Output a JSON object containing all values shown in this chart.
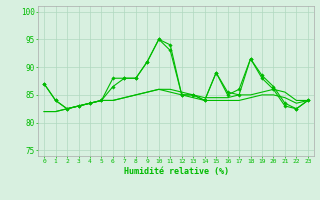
{
  "xlabel": "Humidité relative (%)",
  "ylabel": "",
  "xlim": [
    -0.5,
    23.5
  ],
  "ylim": [
    74,
    101
  ],
  "yticks": [
    75,
    80,
    85,
    90,
    95,
    100
  ],
  "xticks": [
    0,
    1,
    2,
    3,
    4,
    5,
    6,
    7,
    8,
    9,
    10,
    11,
    12,
    13,
    14,
    15,
    16,
    17,
    18,
    19,
    20,
    21,
    22,
    23
  ],
  "background_color": "#d8f0e0",
  "grid_color": "#b0d8c0",
  "line_color": "#00bb00",
  "series": [
    [
      87,
      84,
      82.5,
      83,
      83.5,
      84,
      88,
      88,
      88,
      91,
      95,
      94,
      85,
      85,
      84,
      89,
      85,
      86,
      91.5,
      88.5,
      86.5,
      83.5,
      82.5,
      84
    ],
    [
      87,
      84,
      82.5,
      83,
      83.5,
      84,
      86.5,
      88,
      88,
      91,
      95,
      93,
      85,
      85,
      84,
      89,
      85.5,
      85,
      91.5,
      88,
      86,
      83,
      82.5,
      84
    ],
    [
      82,
      82,
      82.5,
      83,
      83.5,
      84,
      84,
      84.5,
      85,
      85.5,
      86,
      85.5,
      85,
      84.5,
      84,
      84,
      84,
      84,
      84.5,
      85,
      85,
      84.5,
      83.5,
      84
    ],
    [
      82,
      82,
      82.5,
      83,
      83.5,
      84,
      84,
      84.5,
      85,
      85.5,
      86,
      86,
      85.5,
      85,
      84.5,
      84.5,
      84.5,
      85,
      85,
      85.5,
      86,
      85.5,
      84,
      84
    ]
  ]
}
